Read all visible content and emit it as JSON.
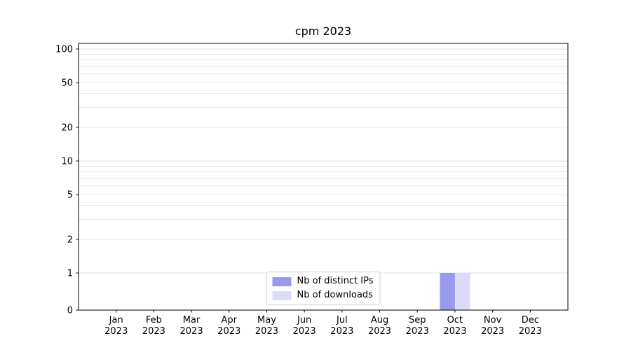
{
  "chart_data": {
    "type": "bar",
    "title": "cpm 2023",
    "categories": [
      "Jan 2023",
      "Feb 2023",
      "Mar 2023",
      "Apr 2023",
      "May 2023",
      "Jun 2023",
      "Jul 2023",
      "Aug 2023",
      "Sep 2023",
      "Oct 2023",
      "Nov 2023",
      "Dec 2023"
    ],
    "series": [
      {
        "name": "Nb of distinct IPs",
        "color": "#9999ee",
        "values": [
          0,
          0,
          0,
          0,
          0,
          0,
          0,
          0,
          0,
          1,
          0,
          0
        ]
      },
      {
        "name": "Nb of downloads",
        "color": "#dcdcf8",
        "values": [
          0,
          0,
          0,
          0,
          0,
          0,
          0,
          0,
          0,
          1,
          0,
          0
        ]
      }
    ],
    "xlabel": "",
    "ylabel": "",
    "y_scale": "symlog",
    "y_linthresh": 1,
    "y_ticks": [
      0,
      1,
      2,
      5,
      10,
      20,
      50,
      100
    ],
    "ylim": [
      0,
      112
    ],
    "grid": "horizontal-minor",
    "grid_color": "#e6e6e6",
    "grid_major_color": "#dedede",
    "axis_color": "#000000",
    "legend_position": "lower center"
  }
}
